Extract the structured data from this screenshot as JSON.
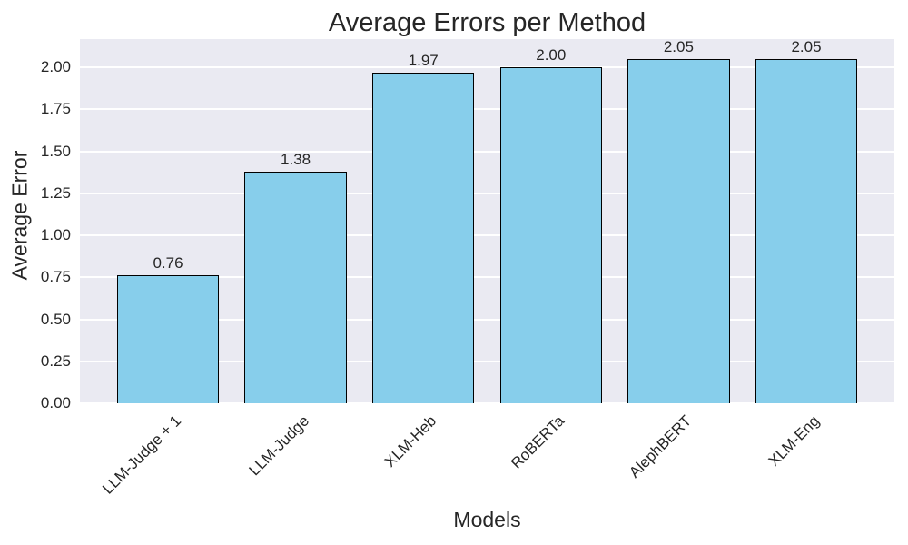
{
  "chart_data": {
    "type": "bar",
    "title": "Average Errors per Method",
    "xlabel": "Models",
    "ylabel": "Average Error",
    "categories": [
      "LLM-Judge + 1",
      "LLM-Judge",
      "XLM-Heb",
      "RoBERTa",
      "AlephBERT",
      "XLM-Eng"
    ],
    "values": [
      0.76,
      1.38,
      1.97,
      2.0,
      2.05,
      2.05
    ],
    "value_labels": [
      "0.76",
      "1.38",
      "1.97",
      "2.00",
      "2.05",
      "2.05"
    ],
    "ytick_labels": [
      "0.00",
      "0.25",
      "0.50",
      "0.75",
      "1.00",
      "1.25",
      "1.50",
      "1.75",
      "2.00"
    ],
    "ytick_values": [
      0,
      0.25,
      0.5,
      0.75,
      1.0,
      1.25,
      1.5,
      1.75,
      2.0
    ],
    "ylim": [
      0,
      2.168
    ],
    "grid": true,
    "legend_position": "none",
    "x_tick_rotation_deg": 45,
    "colors": {
      "bar_fill": "#87CEEB",
      "bar_edge": "#000000",
      "plot_background": "#EAEAF2",
      "gridline": "#FFFFFF",
      "text": "#262626",
      "figure_background": "#FFFFFF"
    }
  }
}
